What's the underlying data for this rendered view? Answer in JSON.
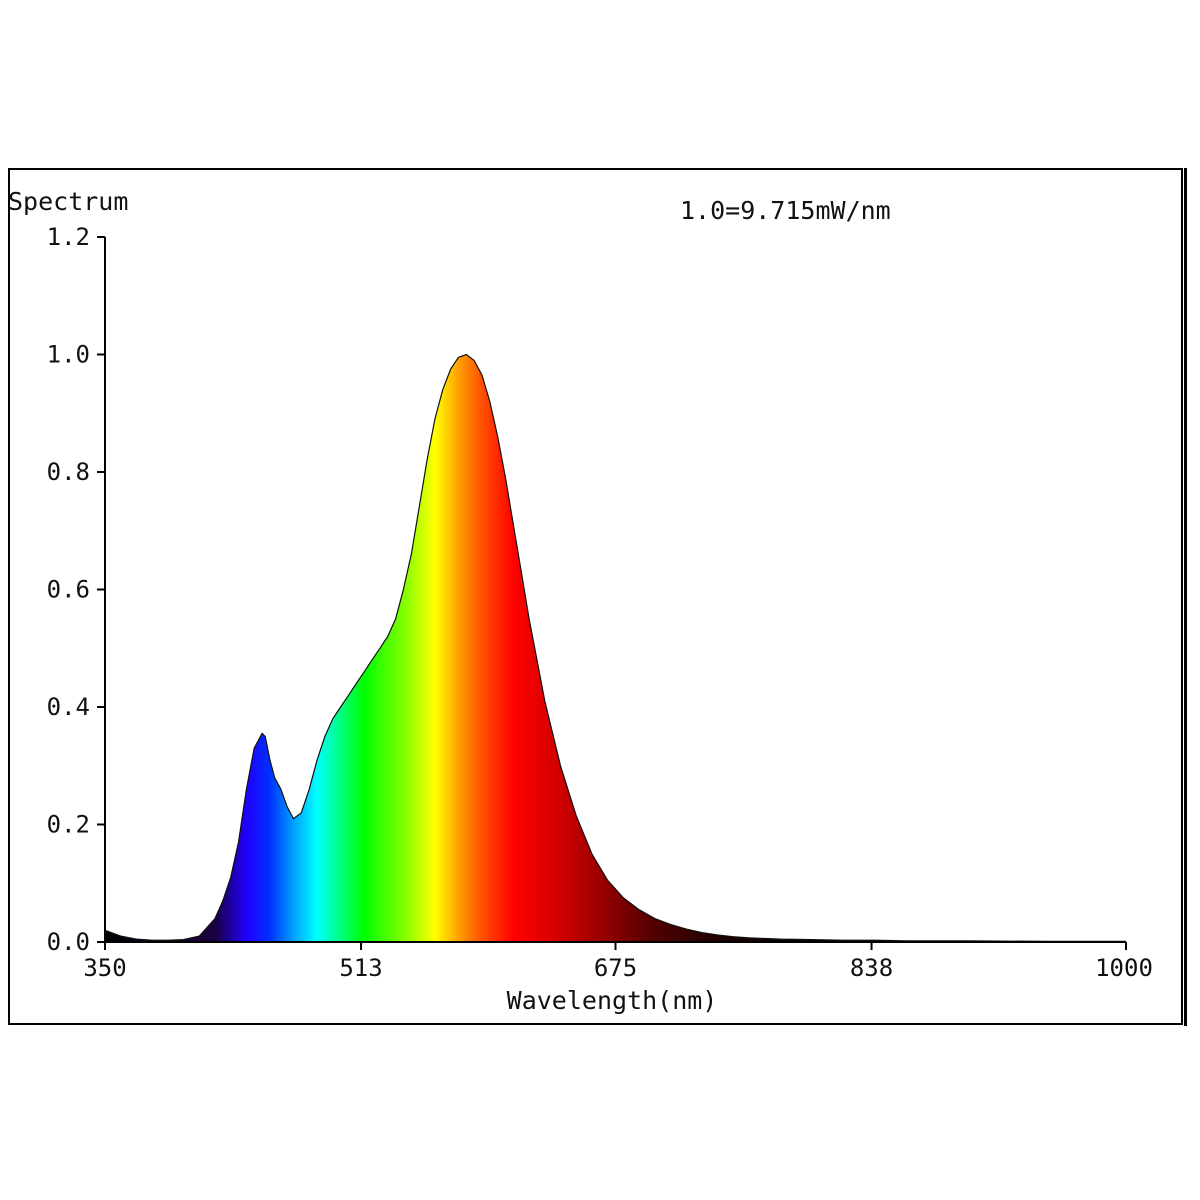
{
  "chart_data": {
    "type": "area",
    "ylabel": "Spectrum",
    "xlabel": "Wavelength(nm)",
    "annotation": "1.0=9.715mW/nm",
    "xlim": [
      350,
      1000
    ],
    "ylim": [
      0,
      1.2
    ],
    "x_ticks": [
      350,
      513,
      675,
      838,
      1000
    ],
    "x_tick_labels": [
      "350",
      "513",
      "675",
      "838",
      "1000"
    ],
    "y_ticks": [
      0.0,
      0.2,
      0.4,
      0.6,
      0.8,
      1.0,
      1.2
    ],
    "y_tick_labels": [
      "0.0",
      "0.2",
      "0.4",
      "0.6",
      "0.8",
      "1.0",
      "1.2"
    ],
    "grid": false,
    "fill": "visible-spectrum color gradient",
    "series": [
      {
        "x": [
          350,
          360,
          370,
          380,
          390,
          400,
          410,
          420,
          425,
          430,
          435,
          440,
          445,
          450,
          452,
          455,
          458,
          462,
          466,
          470,
          475,
          480,
          485,
          490,
          495,
          500,
          505,
          510,
          515,
          520,
          525,
          530,
          535,
          540,
          545,
          550,
          555,
          560,
          565,
          570,
          575,
          580,
          585,
          590,
          595,
          600,
          605,
          610,
          615,
          620,
          625,
          630,
          640,
          650,
          660,
          670,
          680,
          690,
          700,
          710,
          720,
          730,
          740,
          750,
          760,
          780,
          800,
          820,
          840,
          860,
          880,
          900,
          950,
          1000
        ],
        "y": [
          0.02,
          0.01,
          0.005,
          0.003,
          0.003,
          0.004,
          0.01,
          0.04,
          0.07,
          0.11,
          0.17,
          0.26,
          0.33,
          0.355,
          0.35,
          0.31,
          0.28,
          0.26,
          0.23,
          0.21,
          0.22,
          0.26,
          0.31,
          0.35,
          0.38,
          0.4,
          0.42,
          0.44,
          0.46,
          0.48,
          0.5,
          0.52,
          0.55,
          0.6,
          0.66,
          0.74,
          0.82,
          0.89,
          0.94,
          0.975,
          0.995,
          1.0,
          0.99,
          0.965,
          0.92,
          0.86,
          0.79,
          0.71,
          0.63,
          0.55,
          0.48,
          0.41,
          0.3,
          0.215,
          0.15,
          0.105,
          0.075,
          0.055,
          0.04,
          0.03,
          0.022,
          0.016,
          0.012,
          0.009,
          0.007,
          0.005,
          0.004,
          0.003,
          0.003,
          0.002,
          0.002,
          0.002,
          0.001,
          0.001
        ]
      }
    ]
  }
}
